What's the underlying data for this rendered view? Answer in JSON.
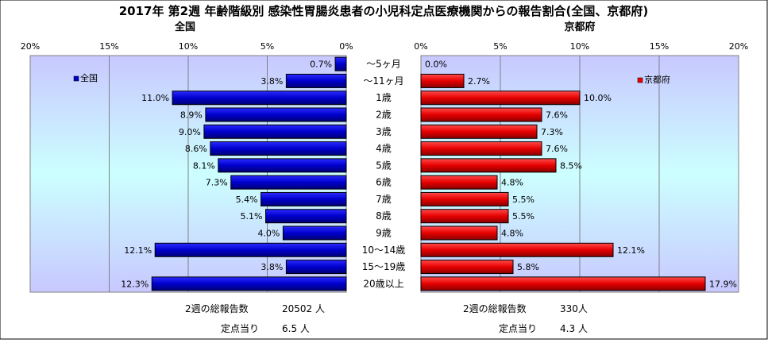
{
  "title": "2017年 第2週 年齢階級別 感染性胃腸炎患者の小児科定点医療機関からの報告割合(全国、京都府)",
  "chart_data": [
    {
      "type": "bar",
      "orientation": "horizontal",
      "direction": "right-to-left",
      "title": "全国",
      "legend": "全国",
      "legend_position": "top-left",
      "xlim": [
        0,
        20
      ],
      "x_ticks": [
        "20%",
        "15%",
        "10%",
        "5%",
        "0%"
      ],
      "grid": true,
      "color": "#0000cc",
      "categories": [
        "～5ヶ月",
        "～11ヶ月",
        "1歳",
        "2歳",
        "3歳",
        "4歳",
        "5歳",
        "6歳",
        "7歳",
        "8歳",
        "9歳",
        "10～14歳",
        "15～19歳",
        "20歳以上"
      ],
      "values": [
        0.7,
        3.8,
        11.0,
        8.9,
        9.0,
        8.6,
        8.1,
        7.3,
        5.4,
        5.1,
        4.0,
        12.1,
        3.8,
        12.3
      ],
      "value_labels": [
        "0.7%",
        "3.8%",
        "11.0%",
        "8.9%",
        "9.0%",
        "8.6%",
        "8.1%",
        "7.3%",
        "5.4%",
        "5.1%",
        "4.0%",
        "12.1%",
        "3.8%",
        "12.3%"
      ]
    },
    {
      "type": "bar",
      "orientation": "horizontal",
      "direction": "left-to-right",
      "title": "京都府",
      "legend": "京都府",
      "legend_position": "top-right",
      "xlim": [
        0,
        20
      ],
      "x_ticks": [
        "0%",
        "5%",
        "10%",
        "15%",
        "20%"
      ],
      "grid": true,
      "color": "#ee0000",
      "categories": [
        "～5ヶ月",
        "～11ヶ月",
        "1歳",
        "2歳",
        "3歳",
        "4歳",
        "5歳",
        "6歳",
        "7歳",
        "8歳",
        "9歳",
        "10～14歳",
        "15～19歳",
        "20歳以上"
      ],
      "values": [
        0.0,
        2.7,
        10.0,
        7.6,
        7.3,
        7.6,
        8.5,
        4.8,
        5.5,
        5.5,
        4.8,
        12.1,
        5.8,
        17.9
      ],
      "value_labels": [
        "0.0%",
        "2.7%",
        "10.0%",
        "7.6%",
        "7.3%",
        "7.6%",
        "8.5%",
        "4.8%",
        "5.5%",
        "5.5%",
        "4.8%",
        "12.1%",
        "5.8%",
        "17.9%"
      ]
    }
  ],
  "summary": {
    "national": {
      "total_label": "2週の総報告数",
      "total_value": "20502 人",
      "per_label": "定点当り",
      "per_value": "6.5 人"
    },
    "kyoto": {
      "total_label": "2週の総報告数",
      "total_value": "330人",
      "per_label": "定点当り",
      "per_value": "4.3 人"
    }
  }
}
